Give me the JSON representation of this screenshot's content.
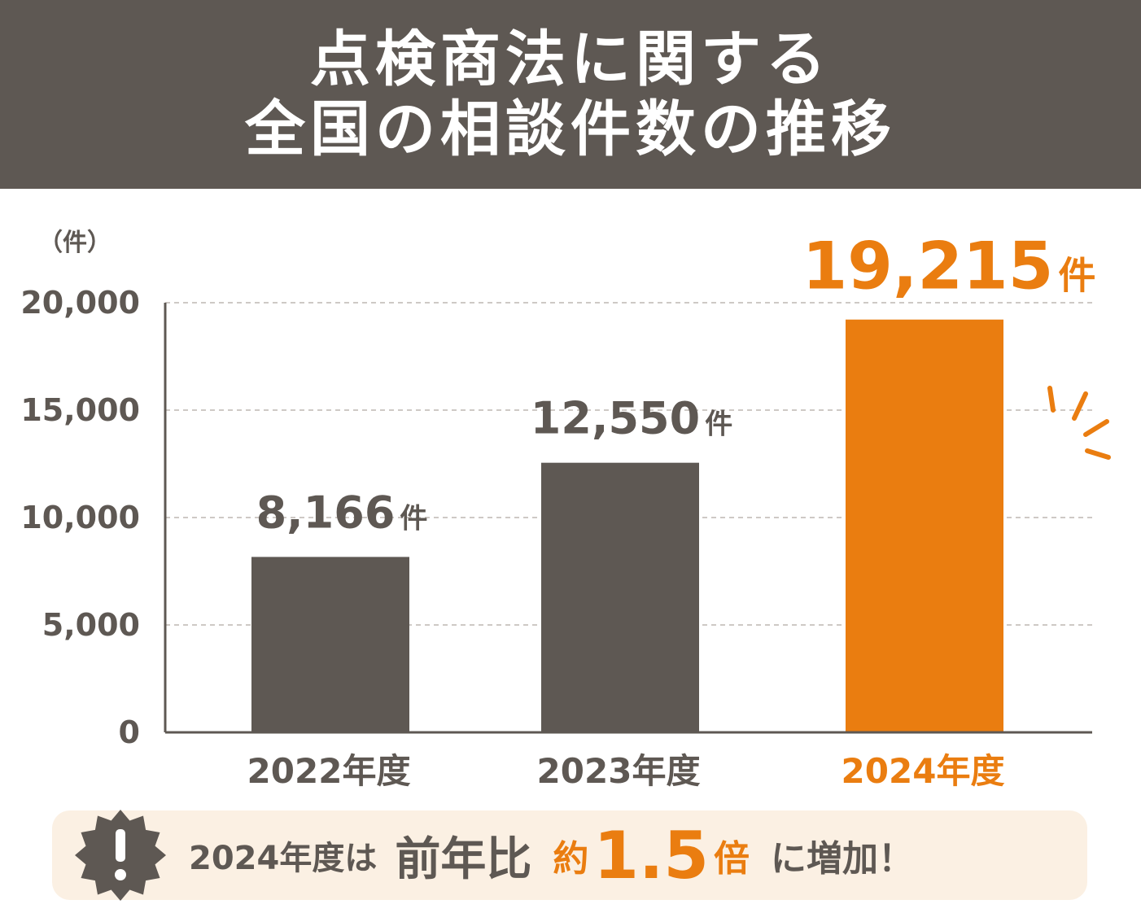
{
  "title": {
    "line1": "点検商法に関する",
    "line2": "全国の相談件数の推移"
  },
  "chart_data": {
    "type": "bar",
    "categories": [
      "2022年度",
      "2023年度",
      "2024年度"
    ],
    "values": [
      8166,
      12550,
      19215
    ],
    "value_labels": [
      "8,166",
      "12,550",
      "19,215"
    ],
    "value_unit": "件",
    "ylabel": "（件）",
    "ylim": [
      0,
      20000
    ],
    "yticks": [
      0,
      5000,
      10000,
      15000,
      20000
    ],
    "ytick_labels": [
      "0",
      "5,000",
      "10,000",
      "15,000",
      "20,000"
    ],
    "grid": true,
    "colors": {
      "bar": "#5e5853",
      "highlight": "#ea7d10"
    },
    "highlight_index": 2
  },
  "note": {
    "icon": "exclamation-badge-icon",
    "segments": [
      "2024年度は",
      "前年比",
      "約",
      "1.5",
      "倍",
      "に増加！"
    ]
  }
}
